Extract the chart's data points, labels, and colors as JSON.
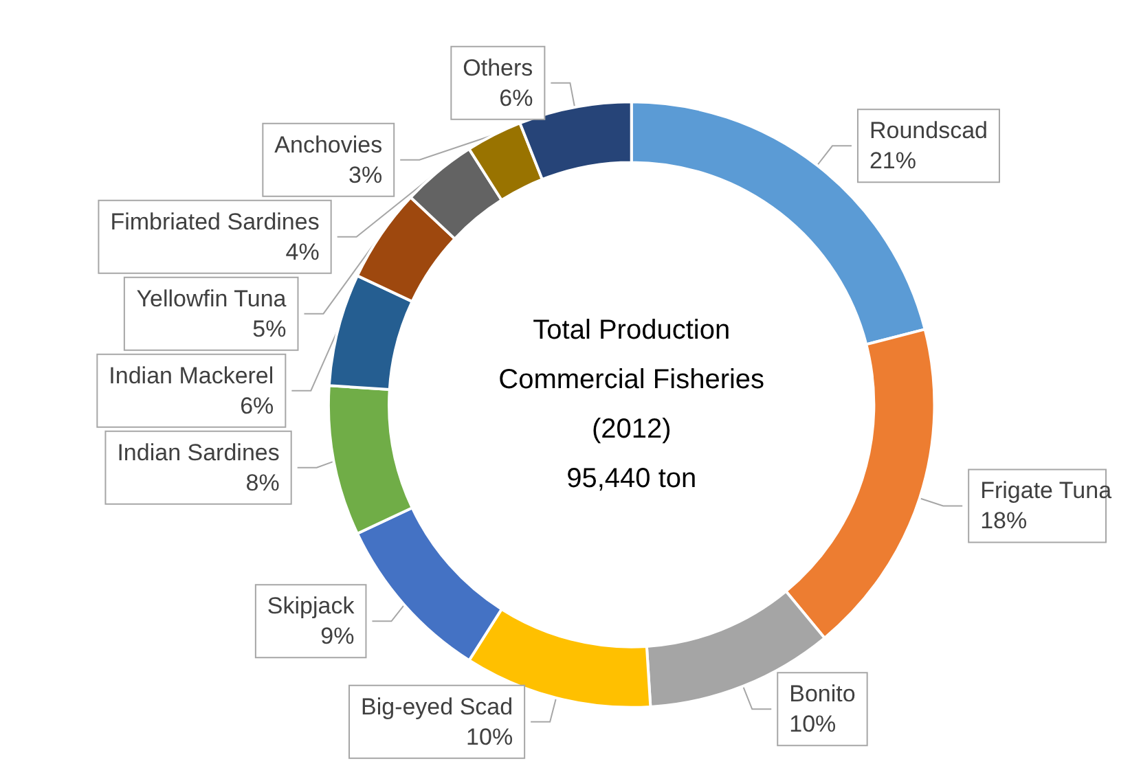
{
  "chart_data": {
    "type": "donut",
    "title": "Total Production",
    "subtitle": "Commercial Fisheries",
    "annotations": [
      "(2012)",
      "95,440 ton"
    ],
    "categories": [
      "Roundscad",
      "Frigate Tuna",
      "Bonito",
      "Big-eyed Scad",
      "Skipjack",
      "Indian Sardines",
      "Indian Mackerel",
      "Yellowfin Tuna",
      "Fimbriated Sardines",
      "Anchovies",
      "Others"
    ],
    "values": [
      21,
      18,
      10,
      10,
      9,
      8,
      6,
      5,
      4,
      3,
      6
    ],
    "value_labels": [
      "21%",
      "18%",
      "10%",
      "10%",
      "9%",
      "8%",
      "6%",
      "5%",
      "4%",
      "3%",
      "6%"
    ],
    "colors": [
      "#5b9bd5",
      "#ed7d31",
      "#a5a5a5",
      "#ffc000",
      "#4472c4",
      "#70ad47",
      "#255e91",
      "#9e480e",
      "#636363",
      "#997300",
      "#264478"
    ],
    "legend": false
  }
}
